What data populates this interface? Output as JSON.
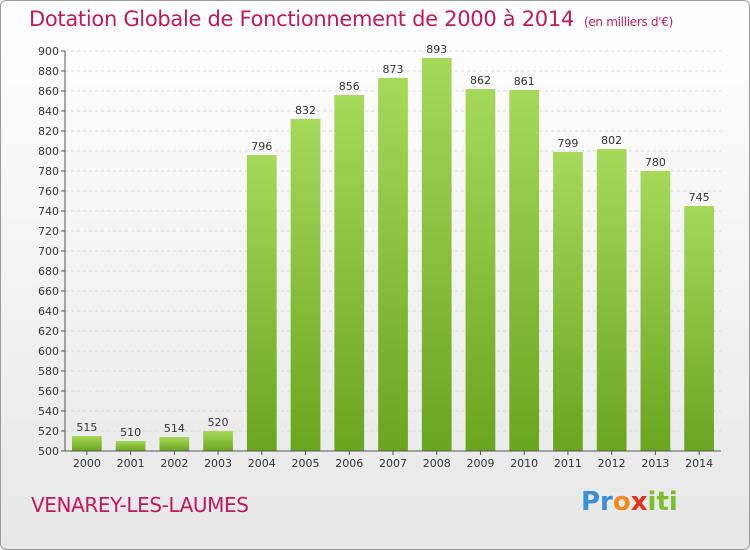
{
  "chart_data": {
    "type": "bar",
    "title": "Dotation Globale de Fonctionnement de 2000 à 2014",
    "unit": "(en milliers d'€)",
    "categories": [
      "2000",
      "2001",
      "2002",
      "2003",
      "2004",
      "2005",
      "2006",
      "2007",
      "2008",
      "2009",
      "2010",
      "2011",
      "2012",
      "2013",
      "2014"
    ],
    "values": [
      515,
      510,
      514,
      520,
      796,
      832,
      856,
      873,
      893,
      862,
      861,
      799,
      802,
      780,
      745
    ],
    "ylim": [
      500,
      900
    ],
    "yticks": [
      500,
      520,
      540,
      560,
      580,
      600,
      620,
      640,
      660,
      680,
      700,
      720,
      740,
      760,
      780,
      800,
      820,
      840,
      860,
      880,
      900
    ],
    "grid": true,
    "bar_color": "#8cc63f"
  },
  "commune": "VENAREY-LES-LAUMES",
  "logo": [
    "Pr",
    "o",
    "x",
    "iti"
  ]
}
